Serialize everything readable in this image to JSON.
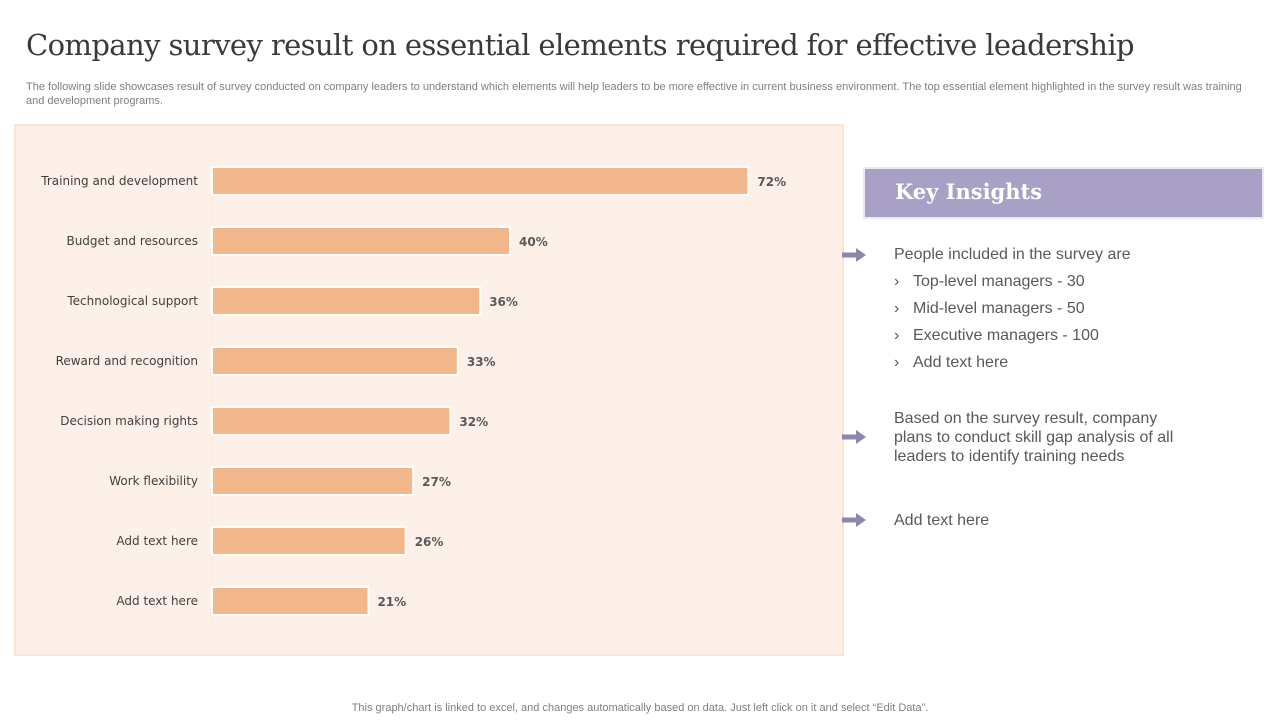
{
  "title": "Company survey result on essential elements required for effective leadership",
  "subtitle": "The following slide showcases result of survey conducted on company leaders to understand which elements will help leaders to be more effective in current business environment. The top essential element highlighted in the survey result was training and development programs.",
  "chart_data": {
    "type": "bar",
    "orientation": "horizontal",
    "categories": [
      "Training and development",
      "Budget and resources",
      "Technological support",
      "Reward and recognition",
      "Decision making rights",
      "Work flexibility",
      "Add text here",
      "Add text here"
    ],
    "values": [
      72,
      40,
      36,
      33,
      32,
      27,
      26,
      21
    ],
    "value_labels": [
      "72%",
      "40%",
      "36%",
      "33%",
      "32%",
      "27%",
      "26%",
      "21%"
    ],
    "unit": "%",
    "xlim": [
      0,
      100
    ],
    "grid": false,
    "bar_color": "#f2b78a",
    "background_color": "#fdf0e8"
  },
  "insights": {
    "title": "Key Insights",
    "intro": "People included in the survey are",
    "bullets": [
      "Top-level managers - 30",
      "Mid-level managers - 50",
      "Executive managers - 100",
      "Add text here"
    ],
    "point2": "Based on the survey result, company plans to conduct skill gap analysis of all leaders to identify training needs",
    "point3": "Add text here",
    "header_color": "#a9a1c5",
    "arrow_color": "#8e86ab"
  },
  "footer": "This graph/chart is linked to excel, and changes automatically based on data. Just left click on it and select “Edit Data”."
}
